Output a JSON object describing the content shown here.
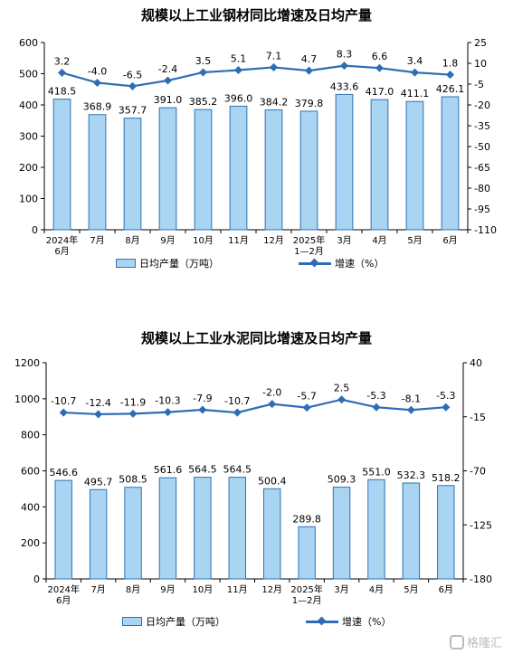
{
  "chart_data": [
    {
      "type": "bar+line",
      "title": "规模以上工业钢材同比增速及日均产量",
      "categories": [
        "2024年\n6月",
        "7月",
        "8月",
        "9月",
        "10月",
        "11月",
        "12月",
        "2025年\n1—2月",
        "3月",
        "4月",
        "5月",
        "6月"
      ],
      "series": [
        {
          "name": "日均产量（万吨）",
          "type": "bar",
          "axis": "left",
          "values": [
            418.5,
            368.9,
            357.7,
            391.0,
            385.2,
            396.0,
            384.2,
            379.8,
            433.6,
            417.0,
            411.1,
            426.1
          ],
          "labels": [
            "418.5",
            "368.9",
            "357.7",
            "391.0",
            "385.2",
            "396.0",
            "384.2",
            "379.8",
            "433.6",
            "417.0",
            "411.1",
            "426.1"
          ]
        },
        {
          "name": "增速（%）",
          "type": "line",
          "axis": "right",
          "values": [
            3.2,
            -4.0,
            -6.5,
            -2.4,
            3.5,
            5.1,
            7.1,
            4.7,
            8.3,
            6.6,
            3.4,
            1.8
          ],
          "labels": [
            "3.2",
            "-4.0",
            "-6.5",
            "-2.4",
            "3.5",
            "5.1",
            "7.1",
            "4.7",
            "8.3",
            "6.6",
            "3.4",
            "1.8"
          ]
        }
      ],
      "ylim_left": [
        0,
        600
      ],
      "yticks_left": [
        "0",
        "100",
        "200",
        "300",
        "400",
        "500",
        "600"
      ],
      "ylim_right": [
        -110,
        25
      ],
      "yticks_right": [
        "25",
        "10",
        "-5",
        "-20",
        "-35",
        "-50",
        "-65",
        "-80",
        "-95",
        "-110"
      ],
      "grid": false,
      "legend": "bottom"
    },
    {
      "type": "bar+line",
      "title": "规模以上工业水泥同比增速及日均产量",
      "categories": [
        "2024年\n6月",
        "7月",
        "8月",
        "9月",
        "10月",
        "11月",
        "12月",
        "2025年\n1—2月",
        "3月",
        "4月",
        "5月",
        "6月"
      ],
      "series": [
        {
          "name": "日均产量（万吨）",
          "type": "bar",
          "axis": "left",
          "values": [
            546.6,
            495.7,
            508.5,
            561.6,
            564.5,
            564.5,
            500.4,
            289.8,
            509.3,
            551.0,
            532.3,
            518.2
          ],
          "labels": [
            "546.6",
            "495.7",
            "508.5",
            "561.6",
            "564.5",
            "564.5",
            "500.4",
            "289.8",
            "509.3",
            "551.0",
            "532.3",
            "518.2"
          ]
        },
        {
          "name": "增速（%）",
          "type": "line",
          "axis": "right",
          "values": [
            -10.7,
            -12.4,
            -11.9,
            -10.3,
            -7.9,
            -10.7,
            -2.0,
            -5.7,
            2.5,
            -5.3,
            -8.1,
            -5.3
          ],
          "labels": [
            "-10.7",
            "-12.4",
            "-11.9",
            "-10.3",
            "-7.9",
            "-10.7",
            "-2.0",
            "-5.7",
            "2.5",
            "-5.3",
            "-8.1",
            "-5.3"
          ]
        }
      ],
      "ylim_left": [
        0,
        1200
      ],
      "yticks_left": [
        "0",
        "200",
        "400",
        "600",
        "800",
        "1000",
        "1200"
      ],
      "ylim_right": [
        -180,
        40
      ],
      "yticks_right": [
        "40",
        "-15",
        "-70",
        "-125",
        "-180"
      ],
      "grid": false,
      "legend": "bottom"
    }
  ],
  "legend": {
    "bar_label": "日均产量（万吨）",
    "line_label": "增速（%）"
  },
  "colors": {
    "bar_fill": "#a9d4f2",
    "bar_stroke": "#2e74b5",
    "line": "#2e6db4",
    "axis": "#000000"
  },
  "watermark": {
    "text": "格隆汇"
  }
}
